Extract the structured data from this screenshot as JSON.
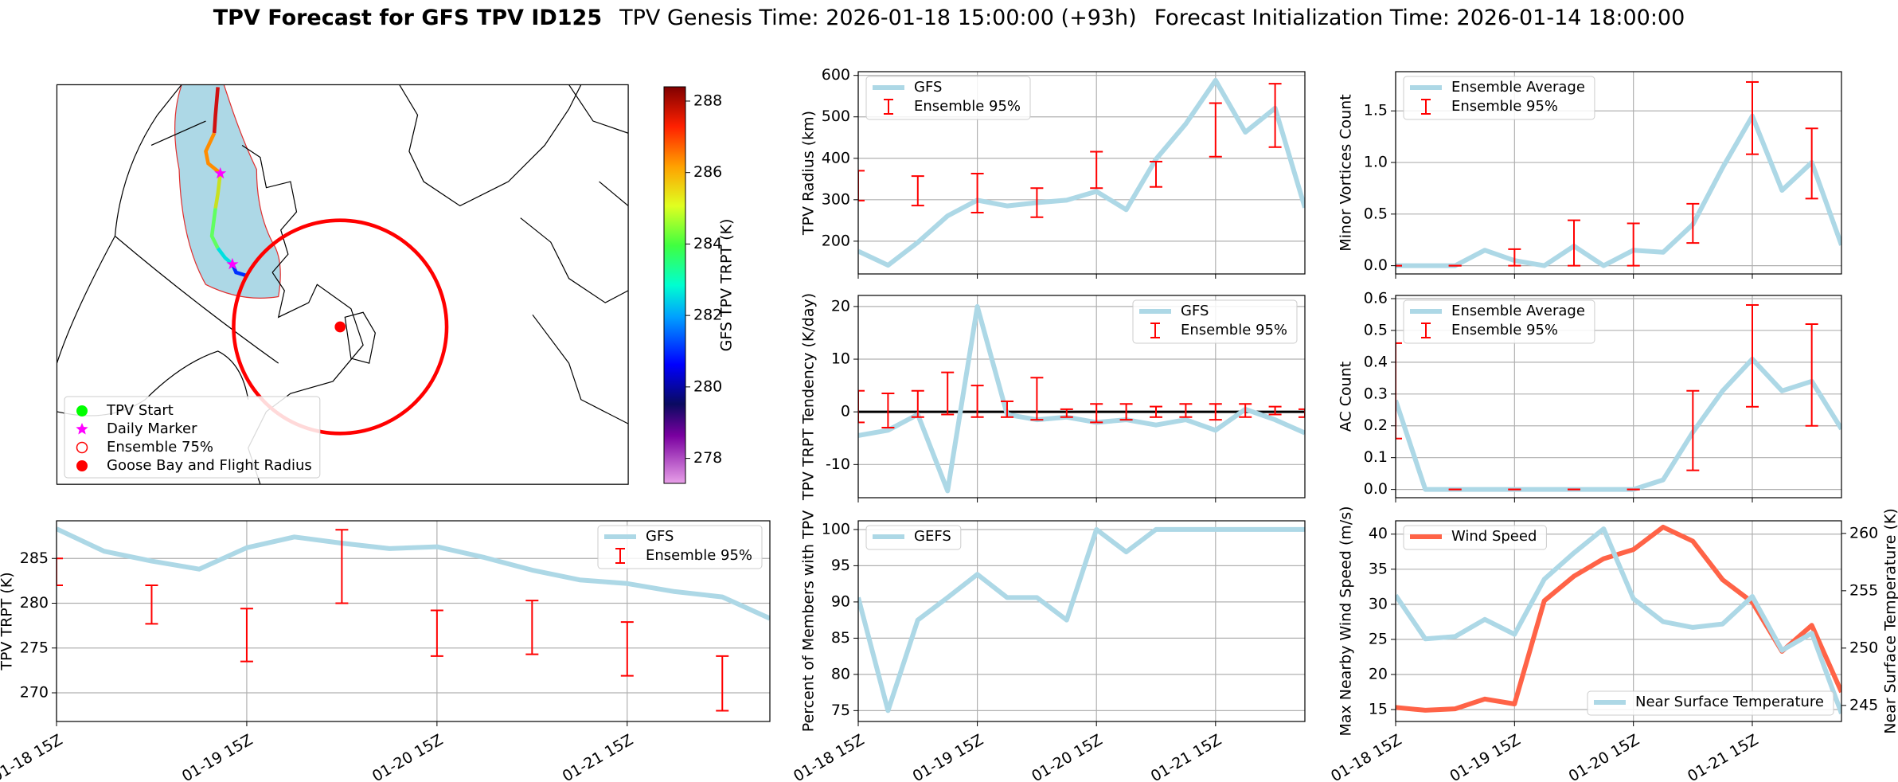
{
  "title": {
    "main": "TPV Forecast for GFS TPV ID125",
    "genesis": "TPV Genesis Time: 2026-01-18 15:00:00 (+93h)",
    "init": "Forecast Initialization Time: 2026-01-14 18:00:00"
  },
  "x": [
    "01-18 15Z",
    "01-18 21Z",
    "01-19 03Z",
    "01-19 09Z",
    "01-19 15Z",
    "01-19 21Z",
    "01-20 03Z",
    "01-20 09Z",
    "01-20 15Z",
    "01-20 21Z",
    "01-21 03Z",
    "01-21 09Z",
    "01-21 15Z",
    "01-21 21Z",
    "01-22 03Z",
    "01-22 09Z"
  ],
  "xticks": [
    "01-18 15Z",
    "01-19 15Z",
    "01-20 15Z",
    "01-21 15Z"
  ],
  "chart_data": [
    {
      "type": "map",
      "legend_loc": "lower left",
      "legend": [
        {
          "name": "TPV Start",
          "marker": "circle",
          "color": "#00ff00"
        },
        {
          "name": "Daily Marker",
          "marker": "star",
          "color": "#ff00ff"
        },
        {
          "name": "Ensemble 75%",
          "marker": "circle-open",
          "color": "#ff0000"
        },
        {
          "name": "Goose Bay and Flight Radius",
          "marker": "circle",
          "color": "#ff0000"
        }
      ],
      "colorbar": {
        "label": "GFS TPV TRPT (K)",
        "lim": [
          277.3,
          288.4
        ],
        "ticks": [
          278,
          280,
          282,
          284,
          286,
          288
        ]
      }
    },
    {
      "type": "line",
      "ylabel": "TPV TRPT (K)",
      "ylim": [
        266.8,
        289.2
      ],
      "yticks": [
        270,
        275,
        280,
        285
      ],
      "grid": true,
      "legend": "upper right",
      "show_xticklabels": true,
      "series": [
        {
          "name": "GFS",
          "color": "#add8e6",
          "values": [
            288.3,
            285.8,
            284.7,
            283.8,
            286.2,
            287.4,
            286.7,
            286.1,
            286.3,
            285.1,
            283.7,
            282.6,
            282.2,
            281.3,
            280.7,
            278.3
          ]
        },
        {
          "name": "Ensemble 95%",
          "type": "errorbar",
          "color": "#ff0000",
          "lower": [
            282,
            null,
            277.7,
            null,
            273.5,
            null,
            280,
            null,
            274.1,
            null,
            274.3,
            null,
            271.9,
            null,
            268,
            null
          ],
          "upper": [
            285,
            null,
            282,
            null,
            279.4,
            null,
            288.2,
            null,
            279.2,
            null,
            280.3,
            null,
            277.9,
            null,
            274.1,
            null
          ]
        }
      ]
    },
    {
      "type": "line",
      "ylabel": "TPV Radius (km)",
      "ylim": [
        121,
        609
      ],
      "yticks": [
        200,
        300,
        400,
        500,
        600
      ],
      "grid": true,
      "legend": "upper left",
      "show_xticklabels": false,
      "series": [
        {
          "name": "GFS",
          "color": "#add8e6",
          "values": [
            176,
            142,
            197,
            261,
            299,
            285,
            293,
            299,
            320,
            276,
            398,
            483,
            588,
            463,
            521,
            281
          ]
        },
        {
          "name": "Ensemble 95%",
          "type": "errorbar",
          "color": "#ff0000",
          "lower": [
            298,
            null,
            286,
            null,
            269,
            null,
            258,
            null,
            328,
            null,
            331,
            null,
            404,
            null,
            427,
            null
          ],
          "upper": [
            370,
            null,
            357,
            null,
            363,
            null,
            328,
            null,
            416,
            null,
            392,
            null,
            533,
            null,
            580,
            null
          ]
        }
      ]
    },
    {
      "type": "line",
      "ylabel": "TPV TRPT Tendency (K/day)",
      "ylim": [
        -16.3,
        22.1
      ],
      "yticks": [
        -10,
        0,
        10,
        20
      ],
      "grid": true,
      "legend": "upper right",
      "show_xticklabels": false,
      "hline": 0,
      "series": [
        {
          "name": "GFS",
          "color": "#add8e6",
          "values": [
            -4.5,
            -3.5,
            -0.5,
            -15,
            20,
            -0.5,
            -1.5,
            -1,
            -2,
            -1.5,
            -2.5,
            -1.5,
            -3.5,
            0.5,
            -1.5,
            -4
          ]
        },
        {
          "name": "Ensemble 95%",
          "type": "errorbar",
          "color": "#ff0000",
          "lower": [
            -2,
            -3,
            -1,
            -0.5,
            -1,
            -1,
            -1.5,
            -1,
            -2,
            -1.5,
            -1,
            -1,
            -1.5,
            -1,
            -0.5,
            -1
          ],
          "upper": [
            4,
            3.5,
            4,
            7.5,
            5,
            2,
            6.5,
            0.5,
            1.5,
            1.5,
            1,
            1.5,
            1.5,
            1.5,
            1,
            0.5
          ]
        }
      ]
    },
    {
      "type": "line",
      "ylabel": "Percent of Members with TPV",
      "ylim": [
        73.5,
        101.2
      ],
      "yticks": [
        75,
        80,
        85,
        90,
        95,
        100
      ],
      "grid": true,
      "legend": "upper left",
      "show_xticklabels": true,
      "series": [
        {
          "name": "GEFS",
          "color": "#add8e6",
          "values": [
            90.6,
            75,
            87.5,
            90.6,
            93.8,
            90.6,
            90.6,
            87.5,
            100,
            96.9,
            100,
            100,
            100,
            100,
            100,
            100
          ]
        }
      ]
    },
    {
      "type": "line",
      "ylabel": "Minor Vortices Count",
      "ylim": [
        -0.08,
        1.88
      ],
      "yticks": [
        {
          "value": 0,
          "label": "0.0"
        },
        0.5,
        {
          "value": 1,
          "label": "1.0"
        },
        1.5
      ],
      "grid": true,
      "legend": "upper left",
      "show_xticklabels": false,
      "series": [
        {
          "name": "Ensemble Average",
          "color": "#add8e6",
          "values": [
            0,
            0,
            0,
            0.15,
            0.05,
            0,
            0.19,
            0,
            0.15,
            0.13,
            0.4,
            0.95,
            1.45,
            0.73,
            1.0,
            0.2
          ]
        },
        {
          "name": "Ensemble 95%",
          "type": "errorbar",
          "color": "#ff0000",
          "lower": [
            0,
            null,
            0,
            null,
            0,
            null,
            0,
            null,
            0,
            null,
            0.22,
            null,
            1.08,
            null,
            0.65,
            null
          ],
          "upper": [
            0,
            null,
            0,
            null,
            0.16,
            null,
            0.44,
            null,
            0.41,
            null,
            0.6,
            null,
            1.78,
            null,
            1.33,
            null
          ]
        }
      ]
    },
    {
      "type": "line",
      "ylabel": "AC Count",
      "ylim": [
        -0.026,
        0.61
      ],
      "yticks": [
        {
          "value": 0,
          "label": "0.0"
        },
        0.1,
        0.2,
        0.3,
        0.4,
        0.5,
        0.6
      ],
      "grid": true,
      "legend": "upper left",
      "show_xticklabels": false,
      "series": [
        {
          "name": "Ensemble Average",
          "color": "#add8e6",
          "values": [
            0.28,
            0,
            0,
            0,
            0,
            0,
            0,
            0,
            0,
            0.03,
            0.18,
            0.31,
            0.41,
            0.31,
            0.34,
            0.19
          ]
        },
        {
          "name": "Ensemble 95%",
          "type": "errorbar",
          "color": "#ff0000",
          "lower": [
            0.16,
            null,
            0,
            null,
            0,
            null,
            0,
            null,
            0,
            null,
            0.06,
            null,
            0.26,
            null,
            0.2,
            null
          ],
          "upper": [
            0.46,
            null,
            0,
            null,
            0,
            null,
            0,
            null,
            0,
            null,
            0.31,
            null,
            0.58,
            null,
            0.52,
            null
          ]
        }
      ]
    },
    {
      "type": "line",
      "ylabel": "Max Nearby Wind Speed (m/s)",
      "ycolor": "#ff6347",
      "y2label": "Near Surface Temperature (K)",
      "y2color": "#4169e1",
      "ylim": [
        13.3,
        41.9
      ],
      "yticks": [
        15,
        20,
        25,
        30,
        35,
        40
      ],
      "y2lim": [
        243.6,
        261.1
      ],
      "y2ticks": [
        245,
        250,
        255,
        260
      ],
      "grid": true,
      "show_xticklabels": true,
      "series": [
        {
          "name": "Wind Speed",
          "color": "#ff6347",
          "legend": "upper left",
          "values": [
            15.3,
            14.9,
            15.1,
            16.5,
            15.8,
            30.5,
            34,
            36.5,
            37.8,
            41,
            39,
            33.5,
            30.3,
            23.3,
            27,
            17.5
          ]
        },
        {
          "name": "Near Surface Temperature",
          "color": "#add8e6",
          "axis": "y2",
          "legend": "lower right",
          "values": [
            254.6,
            250.8,
            251,
            252.5,
            251.2,
            256,
            258.3,
            260.4,
            254.3,
            252.3,
            251.8,
            252.1,
            254.5,
            249.8,
            251.3,
            244.3
          ]
        }
      ]
    }
  ]
}
